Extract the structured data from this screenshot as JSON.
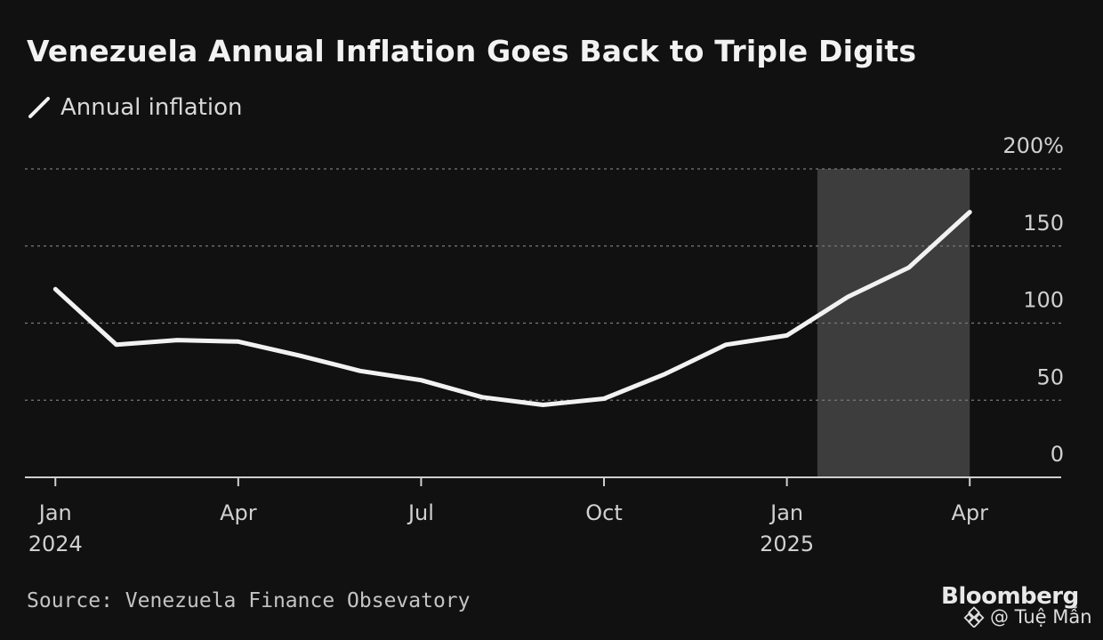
{
  "chart_data": {
    "type": "line",
    "title": "Venezuela Annual Inflation Goes Back to Triple Digits",
    "legend": [
      "Annual inflation"
    ],
    "series": [
      {
        "name": "Annual inflation",
        "x": [
          "2024-01",
          "2024-02",
          "2024-03",
          "2024-04",
          "2024-05",
          "2024-06",
          "2024-07",
          "2024-08",
          "2024-09",
          "2024-10",
          "2024-11",
          "2024-12",
          "2025-01",
          "2025-02",
          "2025-03",
          "2025-04"
        ],
        "values": [
          122,
          86,
          89,
          88,
          79,
          69,
          63,
          52,
          47,
          51,
          67,
          86,
          92,
          117,
          136,
          172
        ]
      }
    ],
    "x_ticks": [
      {
        "month_index": 0,
        "label": "Jan",
        "sublabel": "2024"
      },
      {
        "month_index": 3,
        "label": "Apr",
        "sublabel": ""
      },
      {
        "month_index": 6,
        "label": "Jul",
        "sublabel": ""
      },
      {
        "month_index": 9,
        "label": "Oct",
        "sublabel": ""
      },
      {
        "month_index": 12,
        "label": "Jan",
        "sublabel": "2025"
      },
      {
        "month_index": 15,
        "label": "Apr",
        "sublabel": ""
      }
    ],
    "y_ticks": [
      {
        "value": 200,
        "label": "200%"
      },
      {
        "value": 150,
        "label": "150"
      },
      {
        "value": 100,
        "label": "100"
      },
      {
        "value": 50,
        "label": "50"
      },
      {
        "value": 0,
        "label": "0"
      }
    ],
    "ylim": [
      0,
      200
    ],
    "xlim_months": [
      -0.5,
      16.5
    ],
    "highlight_months": [
      13,
      15
    ],
    "xlabel": "",
    "ylabel": "",
    "grid": true
  },
  "source": "Source: Venezuela Finance Obsevatory",
  "brand": "Bloomberg",
  "watermark": "@ Tuệ Mẫn",
  "colors": {
    "background": "#111111",
    "line": "#f2f2f2",
    "highlight": "#3d3d3d",
    "grid": "#7a7a7a",
    "axis": "#cfcfcf",
    "tick_text": "#d0d0d0"
  }
}
